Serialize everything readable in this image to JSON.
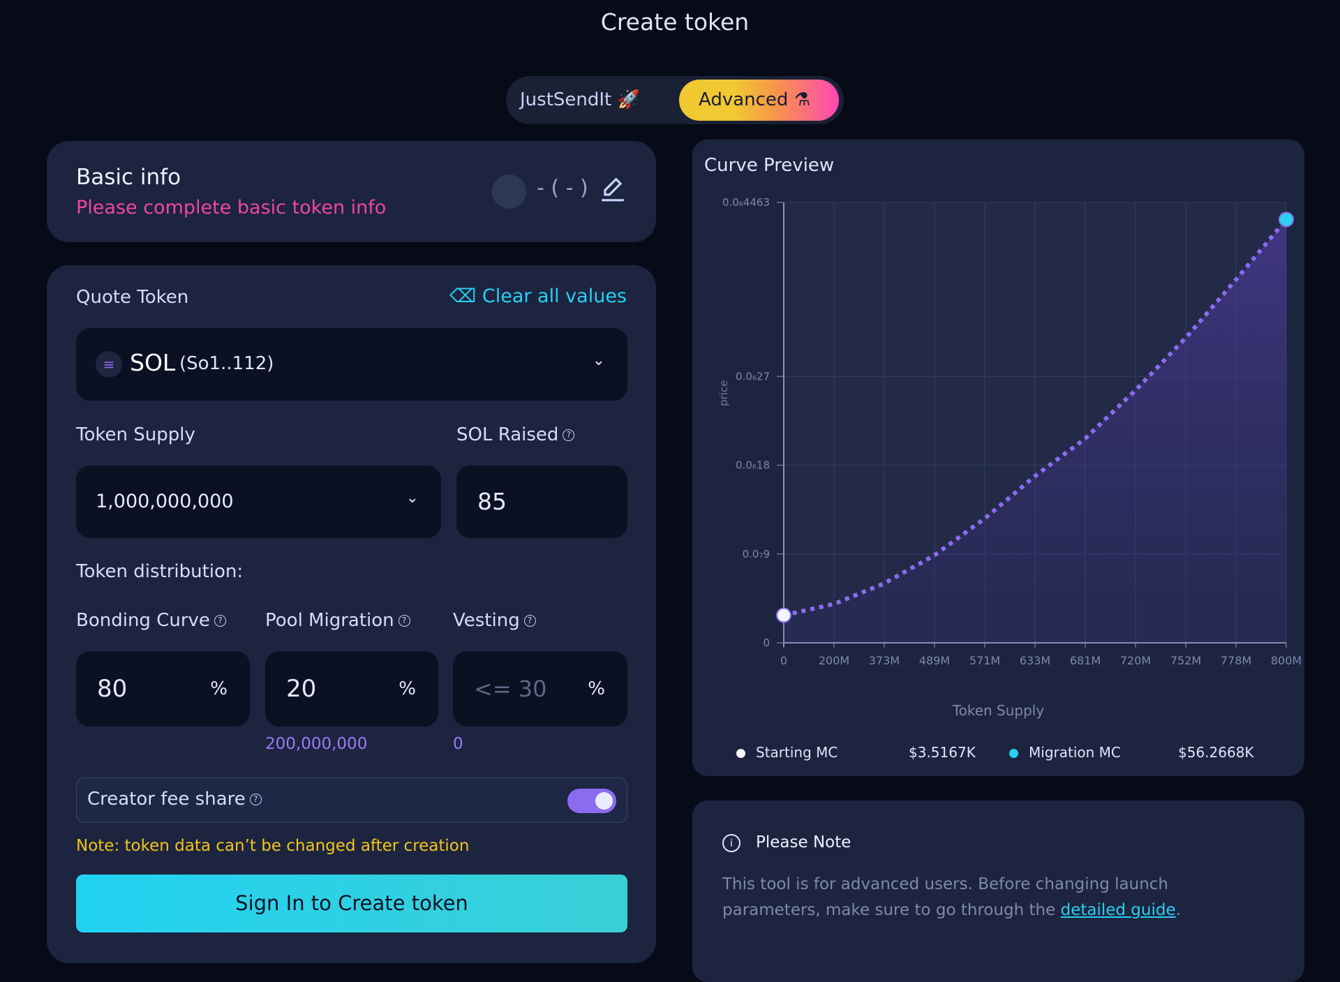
{
  "page": {
    "title": "Create token"
  },
  "mode_toggle": {
    "simple": "JustSendIt",
    "simple_icon": "rocket-icon",
    "advanced": "Advanced",
    "advanced_icon": "flask-icon",
    "active": "Advanced"
  },
  "basic_info": {
    "title": "Basic info",
    "warning": "Please complete basic token info",
    "token_display": "- ( - )",
    "warning_color": "#f0479a"
  },
  "quote": {
    "label": "Quote Token",
    "clear": "Clear all values",
    "token": "SOL",
    "address": "(So1..112)"
  },
  "supply": {
    "label": "Token Supply",
    "value": "1,000,000,000"
  },
  "raised": {
    "label": "SOL Raised",
    "value": "85"
  },
  "distribution": {
    "label": "Token distribution:",
    "bonding": {
      "label": "Bonding Curve",
      "value": "80",
      "unit": "%"
    },
    "pool": {
      "label": "Pool Migration",
      "value": "20",
      "unit": "%",
      "amount": "200,000,000"
    },
    "vesting": {
      "label": "Vesting",
      "placeholder": "<= 30",
      "unit": "%",
      "amount": "0"
    }
  },
  "creator_fee": {
    "label": "Creator fee share",
    "enabled": true
  },
  "note": "Note: token data can’t be changed after creation",
  "submit": "Sign In to Create token",
  "chart": {
    "title": "Curve Preview"
  },
  "chart_data": {
    "type": "area",
    "xlabel": "Token Supply",
    "ylabel": "price",
    "x_ticks": [
      "0",
      "200M",
      "373M",
      "489M",
      "571M",
      "633M",
      "681M",
      "720M",
      "752M",
      "778M",
      "800M"
    ],
    "y_ticks": [
      "0",
      "0.0₇9",
      "0.0₆18",
      "0.0₆27",
      "0.0₆4463"
    ],
    "y_tick_values": [
      0,
      9e-08,
      1.8e-07,
      2.7e-07,
      4.463e-07
    ],
    "ylim": [
      0,
      4.463e-07
    ],
    "grid": true,
    "series": [
      {
        "x": [
          "0",
          "200M",
          "373M",
          "489M",
          "571M",
          "633M",
          "681M",
          "720M",
          "752M",
          "778M",
          "800M"
        ],
        "values": [
          2.79e-08,
          3.93e-08,
          6.02e-08,
          8.88e-08,
          1.26e-07,
          1.69e-07,
          2.07e-07,
          2.56e-07,
          3.09e-07,
          3.68e-07,
          4.29e-07
        ]
      }
    ],
    "legend": [
      {
        "name": "Starting MC",
        "value": "$3.5167K",
        "color": "#ffffff"
      },
      {
        "name": "Migration MC",
        "value": "$56.2668K",
        "color": "#2ad0f0"
      }
    ],
    "line_color": "#8b6cf0"
  },
  "please_note": {
    "title": "Please Note",
    "text": "This tool is for advanced users. Before changing launch parameters, make sure to go through the",
    "link": "detailed guide",
    "end": "."
  }
}
